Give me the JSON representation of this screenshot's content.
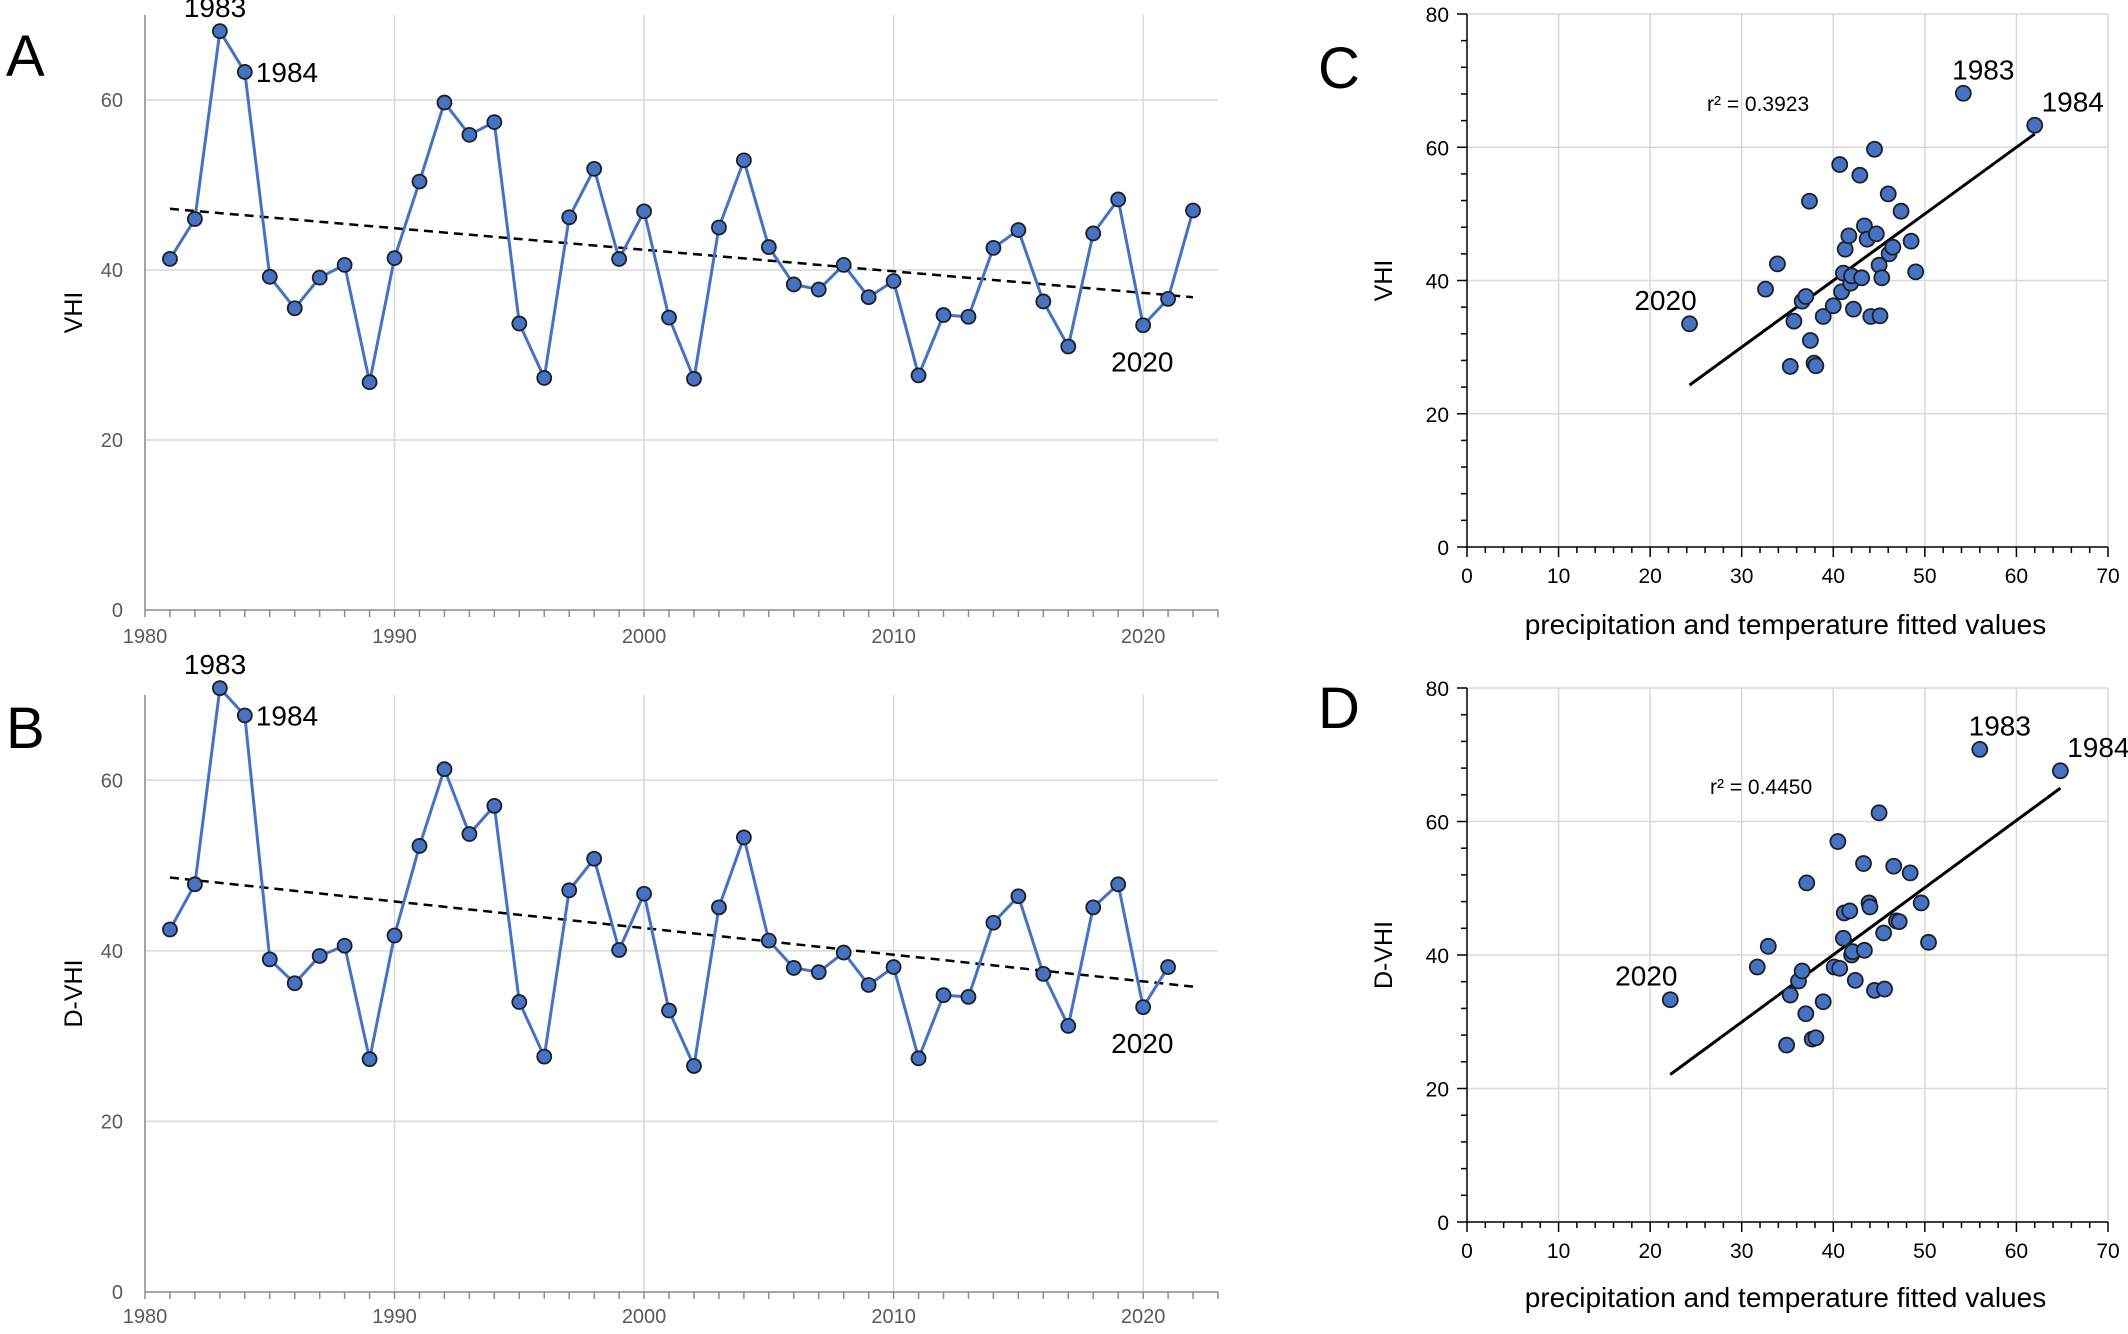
{
  "chart_data": [
    {
      "panel": "A",
      "type": "line",
      "ylabel": "VHI",
      "xlabel": "",
      "xlim": [
        1980,
        2023
      ],
      "ylim": [
        0,
        70
      ],
      "xticks": [
        1980,
        1990,
        2000,
        2010,
        2020
      ],
      "yticks": [
        0,
        20,
        40,
        60
      ],
      "grid": true,
      "trendline": {
        "style": "dashed",
        "from": [
          1981,
          47.2
        ],
        "to": [
          2022,
          36.8
        ]
      },
      "x": [
        1981,
        1982,
        1983,
        1984,
        1985,
        1986,
        1987,
        1988,
        1989,
        1990,
        1991,
        1992,
        1993,
        1994,
        1995,
        1996,
        1997,
        1998,
        1999,
        2000,
        2001,
        2002,
        2003,
        2004,
        2005,
        2006,
        2007,
        2008,
        2009,
        2010,
        2011,
        2012,
        2013,
        2014,
        2015,
        2016,
        2017,
        2018,
        2019,
        2020,
        2021,
        2022
      ],
      "values": [
        41.3,
        46.0,
        68.1,
        63.3,
        39.2,
        35.5,
        39.1,
        40.6,
        26.8,
        41.4,
        50.4,
        59.7,
        55.9,
        57.4,
        33.7,
        27.3,
        46.2,
        51.9,
        41.3,
        46.9,
        34.4,
        27.2,
        45.0,
        52.9,
        42.7,
        38.3,
        37.7,
        40.6,
        36.8,
        38.7,
        27.6,
        34.7,
        34.5,
        42.6,
        44.7,
        36.3,
        31.0,
        44.3,
        48.3,
        33.5,
        36.6,
        47.0
      ],
      "annotations": [
        {
          "x": 1983,
          "text": "1983"
        },
        {
          "x": 1984,
          "text": "1984"
        },
        {
          "x": 2020,
          "text": "2020"
        }
      ]
    },
    {
      "panel": "B",
      "type": "line",
      "ylabel": "D-VHI",
      "xlabel": "",
      "xlim": [
        1980,
        2023
      ],
      "ylim": [
        0,
        70
      ],
      "xticks": [
        1980,
        1990,
        2000,
        2010,
        2020
      ],
      "yticks": [
        0,
        20,
        40,
        60
      ],
      "grid": true,
      "trendline": {
        "style": "dashed",
        "from": [
          1981,
          48.6
        ],
        "to": [
          2022,
          35.8
        ]
      },
      "x": [
        1981,
        1982,
        1983,
        1984,
        1985,
        1986,
        1987,
        1988,
        1989,
        1990,
        1991,
        1992,
        1993,
        1994,
        1995,
        1996,
        1997,
        1998,
        1999,
        2000,
        2001,
        2002,
        2003,
        2004,
        2005,
        2006,
        2007,
        2008,
        2009,
        2010,
        2011,
        2012,
        2013,
        2014,
        2015,
        2016,
        2017,
        2018,
        2019,
        2020,
        2021
      ],
      "values": [
        42.5,
        47.8,
        70.8,
        67.6,
        39.0,
        36.2,
        39.4,
        40.6,
        27.3,
        41.8,
        52.3,
        61.3,
        53.7,
        57.0,
        34.0,
        27.6,
        47.1,
        50.8,
        40.1,
        46.7,
        33.0,
        26.5,
        45.1,
        53.3,
        41.2,
        38.0,
        37.5,
        39.8,
        36.0,
        38.1,
        27.4,
        34.8,
        34.6,
        43.3,
        46.4,
        37.3,
        31.2,
        45.1,
        47.8,
        33.4,
        38.1
      ],
      "annotations": [
        {
          "x": 1983,
          "text": "1983"
        },
        {
          "x": 1984,
          "text": "1984"
        },
        {
          "x": 2020,
          "text": "2020"
        }
      ]
    },
    {
      "panel": "C",
      "type": "scatter",
      "ylabel": "VHI",
      "xlabel": "precipitation and temperature fitted values",
      "xlim": [
        0,
        70
      ],
      "ylim": [
        0,
        80
      ],
      "xticks": [
        0,
        10,
        20,
        30,
        40,
        50,
        60,
        70
      ],
      "yticks": [
        0,
        20,
        40,
        60,
        80
      ],
      "grid": true,
      "r2_label": "r² = 0.3923",
      "fit": {
        "from": [
          24.3,
          24.3
        ],
        "to": [
          62.0,
          62.0
        ]
      },
      "points": [
        [
          24.3,
          33.5
        ],
        [
          32.6,
          38.7
        ],
        [
          33.9,
          42.5
        ],
        [
          35.3,
          27.1
        ],
        [
          35.7,
          33.9
        ],
        [
          36.6,
          36.9
        ],
        [
          37.0,
          37.6
        ],
        [
          37.4,
          51.9
        ],
        [
          37.5,
          31.0
        ],
        [
          37.9,
          27.6
        ],
        [
          38.1,
          27.2
        ],
        [
          38.9,
          34.6
        ],
        [
          40.0,
          36.2
        ],
        [
          40.7,
          57.4
        ],
        [
          40.9,
          38.3
        ],
        [
          41.1,
          41.1
        ],
        [
          41.3,
          44.7
        ],
        [
          41.7,
          46.7
        ],
        [
          41.9,
          39.6
        ],
        [
          42.0,
          40.7
        ],
        [
          42.2,
          35.7
        ],
        [
          42.9,
          55.8
        ],
        [
          43.1,
          40.4
        ],
        [
          43.4,
          48.2
        ],
        [
          43.7,
          46.2
        ],
        [
          44.1,
          34.6
        ],
        [
          44.5,
          59.7
        ],
        [
          44.7,
          47.0
        ],
        [
          45.0,
          42.3
        ],
        [
          45.1,
          34.7
        ],
        [
          45.3,
          40.4
        ],
        [
          46.0,
          53.0
        ],
        [
          46.1,
          44.0
        ],
        [
          46.5,
          45.0
        ],
        [
          47.4,
          50.4
        ],
        [
          48.5,
          45.9
        ],
        [
          49.0,
          41.3
        ],
        [
          54.2,
          68.1
        ],
        [
          62.0,
          63.3
        ]
      ],
      "annotations": [
        {
          "x": 54.2,
          "y": 68.1,
          "text": "1983"
        },
        {
          "x": 62.0,
          "y": 63.3,
          "text": "1984"
        },
        {
          "x": 24.3,
          "y": 33.5,
          "text": "2020"
        }
      ]
    },
    {
      "panel": "D",
      "type": "scatter",
      "ylabel": "D-VHI",
      "xlabel": "precipitation and temperature fitted values",
      "xlim": [
        0,
        70
      ],
      "ylim": [
        0,
        80
      ],
      "xticks": [
        0,
        10,
        20,
        30,
        40,
        50,
        60,
        70
      ],
      "yticks": [
        0,
        20,
        40,
        60,
        80
      ],
      "grid": true,
      "r2_label": "r² = 0.4450",
      "fit": {
        "from": [
          22.2,
          22.1
        ],
        "to": [
          64.8,
          65.0
        ]
      },
      "points": [
        [
          22.2,
          33.3
        ],
        [
          31.7,
          38.2
        ],
        [
          32.9,
          41.3
        ],
        [
          34.9,
          26.5
        ],
        [
          35.3,
          34.0
        ],
        [
          36.2,
          36.1
        ],
        [
          36.6,
          37.6
        ],
        [
          37.1,
          50.8
        ],
        [
          37.0,
          31.2
        ],
        [
          37.7,
          27.4
        ],
        [
          38.1,
          27.6
        ],
        [
          38.9,
          33.0
        ],
        [
          40.1,
          38.2
        ],
        [
          40.5,
          57.0
        ],
        [
          40.7,
          38.0
        ],
        [
          41.1,
          42.5
        ],
        [
          41.2,
          46.3
        ],
        [
          41.8,
          46.6
        ],
        [
          42.0,
          40.0
        ],
        [
          42.1,
          40.5
        ],
        [
          42.4,
          36.2
        ],
        [
          43.3,
          53.7
        ],
        [
          43.4,
          40.7
        ],
        [
          43.9,
          47.8
        ],
        [
          44.0,
          47.2
        ],
        [
          44.5,
          34.7
        ],
        [
          45.0,
          61.3
        ],
        [
          45.5,
          43.3
        ],
        [
          45.6,
          34.9
        ],
        [
          46.6,
          53.3
        ],
        [
          46.9,
          45.1
        ],
        [
          47.2,
          45.0
        ],
        [
          48.4,
          52.3
        ],
        [
          49.6,
          47.8
        ],
        [
          50.4,
          41.9
        ],
        [
          56.0,
          70.8
        ],
        [
          64.8,
          67.6
        ]
      ],
      "annotations": [
        {
          "x": 56.0,
          "y": 70.8,
          "text": "1983"
        },
        {
          "x": 64.8,
          "y": 67.6,
          "text": "1984"
        },
        {
          "x": 22.2,
          "y": 33.3,
          "text": "2020"
        }
      ]
    }
  ]
}
